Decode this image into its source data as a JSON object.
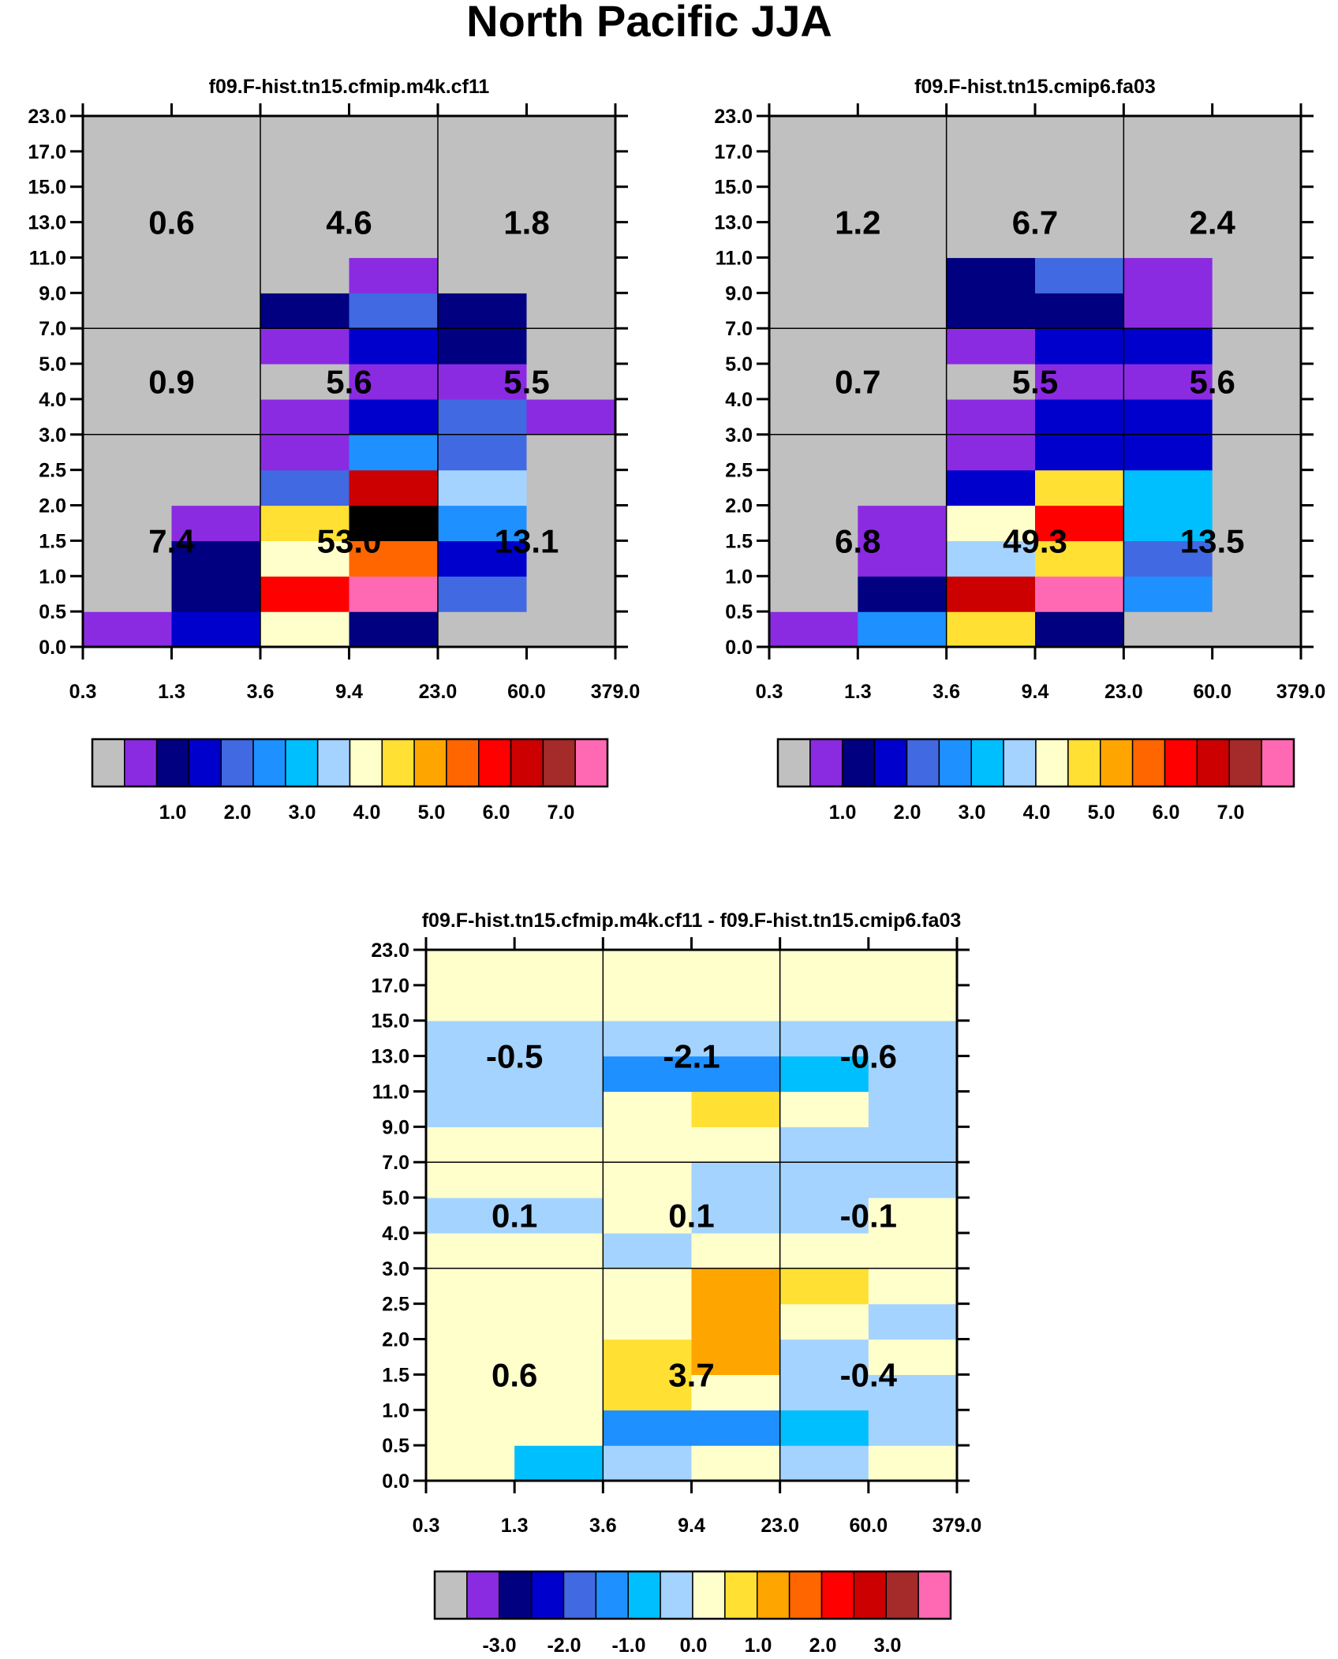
{
  "page_title": "North Pacific JJA",
  "chart_data": [
    {
      "type": "heatmap",
      "title": "f09.F-hist.tn15.cfmip.m4k.cf11",
      "x_tick_labels": [
        "0.3",
        "1.3",
        "3.6",
        "9.4",
        "23.0",
        "60.0",
        "379.0"
      ],
      "y_tick_labels": [
        "0.0",
        "0.5",
        "1.0",
        "1.5",
        "2.0",
        "2.5",
        "3.0",
        "4.0",
        "5.0",
        "7.0",
        "9.0",
        "11.0",
        "13.0",
        "15.0",
        "17.0",
        "23.0"
      ],
      "cells_row0_is_bottom": [
        [
          1,
          3,
          8,
          2,
          0,
          0
        ],
        [
          0,
          2,
          12,
          15,
          4,
          0
        ],
        [
          0,
          2,
          8,
          11,
          3,
          0
        ],
        [
          0,
          1,
          9,
          16,
          5,
          0
        ],
        [
          0,
          0,
          4,
          13,
          7,
          0
        ],
        [
          0,
          0,
          1,
          5,
          4,
          0
        ],
        [
          0,
          0,
          1,
          3,
          4,
          1
        ],
        [
          0,
          0,
          0,
          1,
          1,
          0
        ],
        [
          0,
          0,
          1,
          3,
          2,
          0
        ],
        [
          0,
          0,
          2,
          4,
          2,
          0
        ],
        [
          0,
          0,
          0,
          1,
          0,
          0
        ],
        [
          0,
          0,
          0,
          0,
          0,
          0
        ],
        [
          0,
          0,
          0,
          0,
          0,
          0
        ],
        [
          0,
          0,
          0,
          0,
          0,
          0
        ],
        [
          0,
          0,
          0,
          0,
          0,
          0
        ]
      ],
      "block_values": [
        [
          "0.6",
          "4.6",
          "1.8"
        ],
        [
          "0.9",
          "5.6",
          "5.5"
        ],
        [
          "7.4",
          "53.0",
          "13.1"
        ]
      ],
      "colorbar_labels": [
        "1.0",
        "2.0",
        "3.0",
        "4.0",
        "5.0",
        "6.0",
        "7.0"
      ]
    },
    {
      "type": "heatmap",
      "title": "f09.F-hist.tn15.cmip6.fa03",
      "x_tick_labels": [
        "0.3",
        "1.3",
        "3.6",
        "9.4",
        "23.0",
        "60.0",
        "379.0"
      ],
      "y_tick_labels": [
        "0.0",
        "0.5",
        "1.0",
        "1.5",
        "2.0",
        "2.5",
        "3.0",
        "4.0",
        "5.0",
        "7.0",
        "9.0",
        "11.0",
        "13.0",
        "15.0",
        "17.0",
        "23.0"
      ],
      "cells_row0_is_bottom": [
        [
          1,
          5,
          9,
          2,
          0,
          0
        ],
        [
          0,
          2,
          13,
          15,
          5,
          0
        ],
        [
          0,
          1,
          7,
          9,
          4,
          0
        ],
        [
          0,
          1,
          8,
          12,
          6,
          0
        ],
        [
          0,
          0,
          3,
          9,
          6,
          0
        ],
        [
          0,
          0,
          1,
          3,
          3,
          0
        ],
        [
          0,
          0,
          1,
          3,
          3,
          0
        ],
        [
          0,
          0,
          0,
          1,
          1,
          0
        ],
        [
          0,
          0,
          1,
          3,
          3,
          0
        ],
        [
          0,
          0,
          2,
          2,
          1,
          0
        ],
        [
          0,
          0,
          2,
          4,
          1,
          0
        ],
        [
          0,
          0,
          0,
          0,
          0,
          0
        ],
        [
          0,
          0,
          0,
          0,
          0,
          0
        ],
        [
          0,
          0,
          0,
          0,
          0,
          0
        ],
        [
          0,
          0,
          0,
          0,
          0,
          0
        ]
      ],
      "block_values": [
        [
          "1.2",
          "6.7",
          "2.4"
        ],
        [
          "0.7",
          "5.5",
          "5.6"
        ],
        [
          "6.8",
          "49.3",
          "13.5"
        ]
      ],
      "colorbar_labels": [
        "1.0",
        "2.0",
        "3.0",
        "4.0",
        "5.0",
        "6.0",
        "7.0"
      ]
    },
    {
      "type": "heatmap",
      "title": "f09.F-hist.tn15.cfmip.m4k.cf11 - f09.F-hist.tn15.cmip6.fa03",
      "x_tick_labels": [
        "0.3",
        "1.3",
        "3.6",
        "9.4",
        "23.0",
        "60.0",
        "379.0"
      ],
      "y_tick_labels": [
        "0.0",
        "0.5",
        "1.0",
        "1.5",
        "2.0",
        "2.5",
        "3.0",
        "4.0",
        "5.0",
        "7.0",
        "9.0",
        "11.0",
        "13.0",
        "15.0",
        "17.0",
        "23.0"
      ],
      "cells_row0_is_bottom": [
        [
          8,
          6,
          7,
          8,
          7,
          8
        ],
        [
          8,
          8,
          5,
          5,
          6,
          7
        ],
        [
          8,
          8,
          9,
          8,
          7,
          7
        ],
        [
          8,
          8,
          9,
          10,
          7,
          8
        ],
        [
          8,
          8,
          8,
          10,
          8,
          7
        ],
        [
          8,
          8,
          8,
          10,
          9,
          8
        ],
        [
          8,
          8,
          7,
          8,
          8,
          8
        ],
        [
          7,
          7,
          8,
          7,
          7,
          8
        ],
        [
          8,
          8,
          8,
          7,
          7,
          7
        ],
        [
          8,
          8,
          8,
          8,
          7,
          7
        ],
        [
          7,
          7,
          8,
          9,
          8,
          7
        ],
        [
          7,
          7,
          5,
          5,
          6,
          7
        ],
        [
          7,
          7,
          7,
          7,
          7,
          7
        ],
        [
          8,
          8,
          8,
          8,
          8,
          8
        ],
        [
          8,
          8,
          8,
          8,
          8,
          8
        ]
      ],
      "block_values": [
        [
          "-0.5",
          "-2.1",
          "-0.6"
        ],
        [
          "0.1",
          "0.1",
          "-0.1"
        ],
        [
          "0.6",
          "3.7",
          "-0.4"
        ]
      ],
      "colorbar_labels": [
        "-3.0",
        "-2.0",
        "-1.0",
        "0.0",
        "1.0",
        "2.0",
        "3.0"
      ]
    }
  ],
  "palette": [
    "#c0c0c0",
    "#8a2be2",
    "#000080",
    "#0000cd",
    "#4169e1",
    "#1e90ff",
    "#00bfff",
    "#a4d3ff",
    "#ffffcc",
    "#ffe033",
    "#ffa500",
    "#ff6600",
    "#ff0000",
    "#cc0000",
    "#a52a2a",
    "#ff69b4"
  ]
}
